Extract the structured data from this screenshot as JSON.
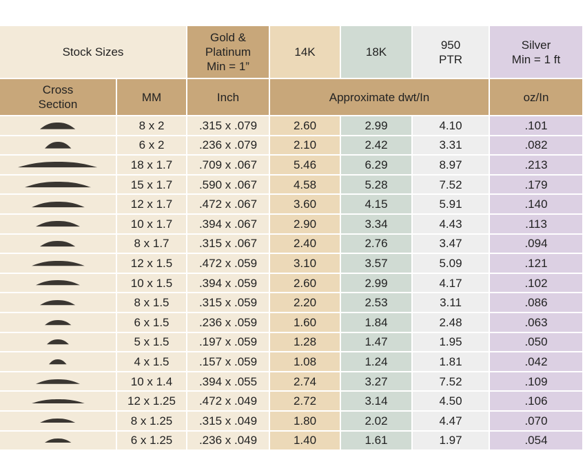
{
  "header": {
    "stock_sizes": "Stock Sizes",
    "gold_platinum": [
      "Gold &",
      "Platinum",
      "Min = 1”"
    ],
    "k14": "14K",
    "k18": "18K",
    "ptr": [
      "950",
      "PTR"
    ],
    "silver": [
      "Silver",
      "Min = 1 ft"
    ]
  },
  "subheader": {
    "cross_section": [
      "Cross",
      "Section"
    ],
    "mm": "MM",
    "inch": "Inch",
    "approx": "Approximate dwt/In",
    "oz": "oz/In"
  },
  "colors": {
    "cream": "#f3ead9",
    "tan": "#c8a77a",
    "k14": "#ecd9b8",
    "k18": "#d0dbd3",
    "ptr": "#eeeeee",
    "silver": "#dcd0e3",
    "profile": "#3a3631"
  },
  "rows": [
    {
      "mm": "8 x 2",
      "inch": ".315 x .079",
      "k14": "2.60",
      "k18": "2.99",
      "ptr": "4.10",
      "silver": ".101"
    },
    {
      "mm": "6 x 2",
      "inch": ".236 x .079",
      "k14": "2.10",
      "k18": "2.42",
      "ptr": "3.31",
      "silver": ".082"
    },
    {
      "mm": "18 x 1.7",
      "inch": ".709 x .067",
      "k14": "5.46",
      "k18": "6.29",
      "ptr": "8.97",
      "silver": ".213"
    },
    {
      "mm": "15 x 1.7",
      "inch": ".590 x .067",
      "k14": "4.58",
      "k18": "5.28",
      "ptr": "7.52",
      "silver": ".179"
    },
    {
      "mm": "12 x 1.7",
      "inch": ".472 x .067",
      "k14": "3.60",
      "k18": "4.15",
      "ptr": "5.91",
      "silver": ".140"
    },
    {
      "mm": "10 x 1.7",
      "inch": ".394 x .067",
      "k14": "2.90",
      "k18": "3.34",
      "ptr": "4.43",
      "silver": ".113"
    },
    {
      "mm": "8 x 1.7",
      "inch": ".315 x .067",
      "k14": "2.40",
      "k18": "2.76",
      "ptr": "3.47",
      "silver": ".094"
    },
    {
      "mm": "12 x 1.5",
      "inch": ".472 x .059",
      "k14": "3.10",
      "k18": "3.57",
      "ptr": "5.09",
      "silver": ".121"
    },
    {
      "mm": "10 x 1.5",
      "inch": ".394 x .059",
      "k14": "2.60",
      "k18": "2.99",
      "ptr": "4.17",
      "silver": ".102"
    },
    {
      "mm": "8 x 1.5",
      "inch": ".315 x .059",
      "k14": "2.20",
      "k18": "2.53",
      "ptr": "3.11",
      "silver": ".086"
    },
    {
      "mm": "6 x 1.5",
      "inch": ".236 x .059",
      "k14": "1.60",
      "k18": "1.84",
      "ptr": "2.48",
      "silver": ".063"
    },
    {
      "mm": "5 x 1.5",
      "inch": ".197 x .059",
      "k14": "1.28",
      "k18": "1.47",
      "ptr": "1.95",
      "silver": ".050"
    },
    {
      "mm": "4 x 1.5",
      "inch": ".157 x .059",
      "k14": "1.08",
      "k18": "1.24",
      "ptr": "1.81",
      "silver": ".042"
    },
    {
      "mm": "10 x 1.4",
      "inch": ".394 x .055",
      "k14": "2.74",
      "k18": "3.27",
      "ptr": "7.52",
      "silver": ".109"
    },
    {
      "mm": "12 x 1.25",
      "inch": ".472 x .049",
      "k14": "2.72",
      "k18": "3.14",
      "ptr": "4.50",
      "silver": ".106"
    },
    {
      "mm": "8 x 1.25",
      "inch": ".315 x .049",
      "k14": "1.80",
      "k18": "2.02",
      "ptr": "4.47",
      "silver": ".070"
    },
    {
      "mm": "6 x 1.25",
      "inch": ".236 x .049",
      "k14": "1.40",
      "k18": "1.61",
      "ptr": "1.97",
      "silver": ".054"
    }
  ]
}
